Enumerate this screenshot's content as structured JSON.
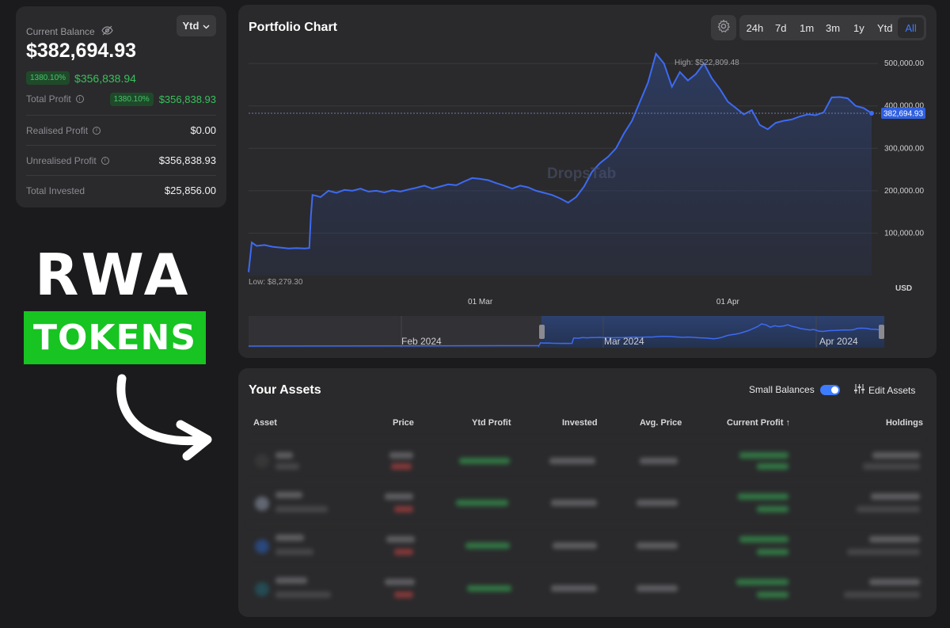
{
  "balance": {
    "label": "Current Balance",
    "period": "Ytd",
    "value": "$382,694.93",
    "change_pct": "1380.10%",
    "change_value": "$356,838.94",
    "rows": [
      {
        "label": "Total Profit",
        "pct": "1380.10%",
        "value": "$356,838.93",
        "color": "green"
      },
      {
        "label": "Realised Profit",
        "value": "$0.00",
        "color": "white"
      },
      {
        "label": "Unrealised Profit",
        "value": "$356,838.93",
        "color": "green"
      },
      {
        "label": "Total Invested",
        "value": "$25,856.00",
        "color": "white"
      }
    ]
  },
  "promo": {
    "line1": "RWA",
    "line2": "TOKENS"
  },
  "chart_panel": {
    "title": "Portfolio Chart",
    "ranges": [
      "24h",
      "7d",
      "1m",
      "3m",
      "1y",
      "Ytd",
      "All"
    ],
    "active_range": "All",
    "watermark": "DropsTab",
    "high_label": "High: $522,809.48",
    "low_label": "Low: $8,279.30",
    "current_label": "382,694.93",
    "currency": "USD",
    "accent": "#3d7bff",
    "nav_labels": [
      "Feb 2024",
      "Mar 2024",
      "Apr 2024"
    ]
  },
  "chart_data": {
    "type": "area",
    "ylabel": "USD",
    "ylim": [
      0,
      560000
    ],
    "y_ticks": [
      100000,
      200000,
      300000,
      400000,
      500000
    ],
    "y_tick_labels": [
      "100,000.00",
      "200,000.00",
      "300,000.00",
      "400,000.00",
      "500,000.00"
    ],
    "x_tick_labels": [
      "01 Mar",
      "01 Apr"
    ],
    "x_tick_positions_day": [
      29,
      60
    ],
    "x_range_day": [
      0,
      78
    ],
    "series": [
      {
        "x": [
          0,
          0.4,
          1,
          2,
          3,
          4,
          5,
          6,
          7,
          7.6,
          7.8,
          8,
          8.5,
          9,
          10,
          11,
          12,
          13,
          14,
          15,
          16,
          17,
          18,
          19,
          20,
          21,
          22,
          23,
          24,
          25,
          26,
          27,
          28,
          29,
          30,
          31,
          32,
          33,
          34,
          35,
          36,
          37,
          38,
          39,
          40,
          41,
          42,
          43,
          44,
          45,
          46,
          47,
          48,
          49,
          50,
          51,
          52,
          53,
          54,
          55,
          56,
          57,
          58,
          59,
          60,
          61,
          62,
          63,
          64,
          65,
          66,
          67,
          68,
          69,
          70,
          71,
          72,
          73,
          74,
          75,
          76,
          77,
          78
        ],
        "y": [
          8279,
          78000,
          70000,
          72000,
          68000,
          66000,
          64000,
          65000,
          64000,
          65000,
          140000,
          190000,
          188000,
          185000,
          200000,
          195000,
          202000,
          200000,
          205000,
          198000,
          200000,
          196000,
          201000,
          198000,
          203000,
          207000,
          212000,
          205000,
          210000,
          215000,
          213000,
          222000,
          230000,
          228000,
          225000,
          218000,
          212000,
          205000,
          212000,
          208000,
          200000,
          195000,
          190000,
          182000,
          172000,
          185000,
          210000,
          245000,
          265000,
          280000,
          300000,
          335000,
          365000,
          410000,
          455000,
          522809,
          500000,
          445000,
          480000,
          460000,
          475000,
          500000,
          465000,
          440000,
          410000,
          395000,
          380000,
          390000,
          355000,
          345000,
          360000,
          365000,
          368000,
          375000,
          380000,
          378000,
          385000,
          420000,
          421000,
          418000,
          400000,
          395000,
          382695
        ]
      }
    ]
  },
  "assets": {
    "title": "Your Assets",
    "small_balances_label": "Small Balances",
    "edit_label": "Edit Assets",
    "columns": [
      "Asset",
      "Price",
      "Ytd Profit",
      "Invested",
      "Avg. Price",
      "Current Profit ↑",
      "Holdings"
    ]
  }
}
